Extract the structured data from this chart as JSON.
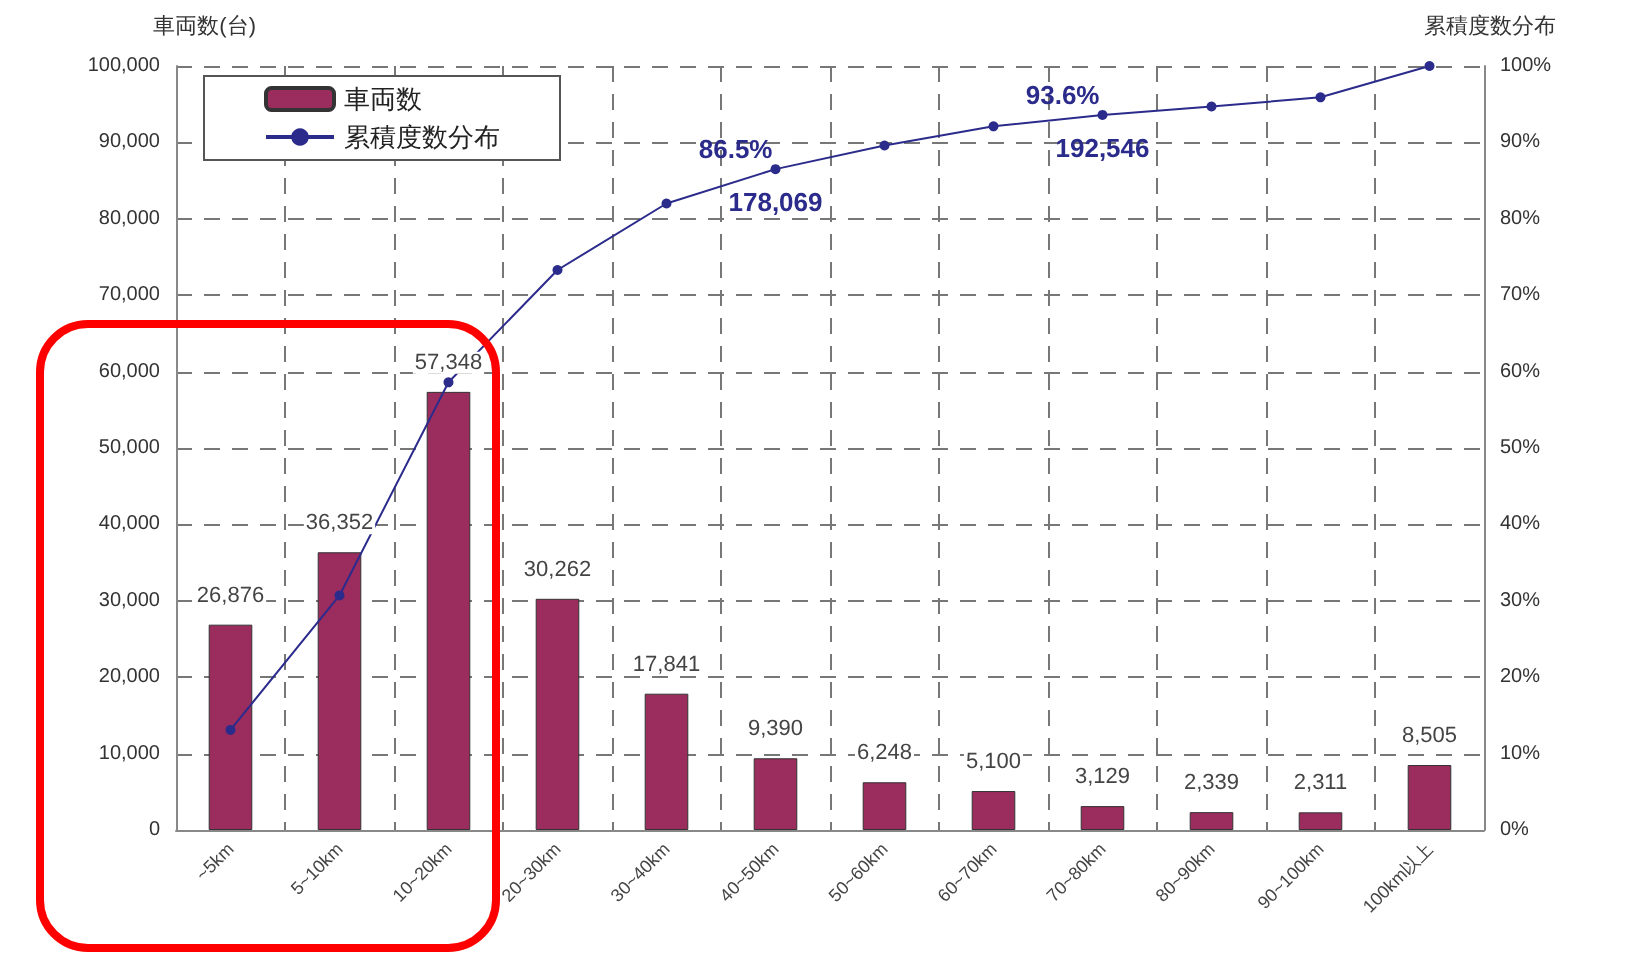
{
  "chart_data": {
    "type": "bar",
    "ylabel": "車両数(台)",
    "y2label": "累積度数分布",
    "categories": [
      "~5km",
      "5~10km",
      "10~20km",
      "20~30km",
      "30~40km",
      "40~50km",
      "50~60km",
      "60~70km",
      "70~80km",
      "80~90km",
      "90~100km",
      "100km以上"
    ],
    "series": [
      {
        "name": "車両数",
        "color": "#9b2c5e",
        "values": [
          26876,
          36352,
          57348,
          30262,
          17841,
          9390,
          6248,
          5100,
          3129,
          2339,
          2311,
          8505
        ],
        "value_labels": [
          "26,876",
          "36,352",
          "57,348",
          "30,262",
          "17,841",
          "9,390",
          "6,248",
          "5,100",
          "3,129",
          "2,339",
          "2,311",
          "8,505"
        ]
      },
      {
        "name": "累積度数分布",
        "type": "line",
        "axis": "y2",
        "color": "#2b2b8c",
        "marker": "circle",
        "values": [
          13.1,
          30.7,
          58.6,
          73.3,
          82.0,
          86.5,
          89.6,
          92.1,
          93.6,
          94.7,
          95.9,
          100
        ],
        "value_labels": [
          null,
          null,
          null,
          null,
          null,
          "86.5%",
          null,
          null,
          "93.6%",
          null,
          null,
          null
        ]
      }
    ],
    "annotations": [
      "178,069",
      "192,546"
    ],
    "ylim": [
      0,
      100000
    ],
    "yticks": [
      0,
      {
        "value": 10000,
        "label": "10,000"
      },
      {
        "value": 20000,
        "label": "20,000"
      },
      {
        "value": 30000,
        "label": "30,000"
      },
      {
        "value": 40000,
        "label": "40,000"
      },
      {
        "value": 50000,
        "label": "50,000"
      },
      {
        "value": 60000,
        "label": "60,000"
      },
      {
        "value": 70000,
        "label": "70,000"
      },
      {
        "value": 80000,
        "label": "80,000"
      },
      {
        "value": 90000,
        "label": "90,000"
      },
      {
        "value": 100000,
        "label": "100,000"
      }
    ],
    "y2lim": [
      0,
      100
    ],
    "y2ticks": [
      {
        "value": 0,
        "label": "0%"
      },
      {
        "value": 10,
        "label": "10%"
      },
      {
        "value": 20,
        "label": "20%"
      },
      {
        "value": 30,
        "label": "30%"
      },
      {
        "value": 40,
        "label": "40%"
      },
      {
        "value": 50,
        "label": "50%"
      },
      {
        "value": 60,
        "label": "60%"
      },
      {
        "value": 70,
        "label": "70%"
      },
      {
        "value": 80,
        "label": "80%"
      },
      {
        "value": 90,
        "label": "90%"
      },
      {
        "value": 100,
        "label": "100%"
      }
    ],
    "grid": true,
    "legend": "top left"
  }
}
